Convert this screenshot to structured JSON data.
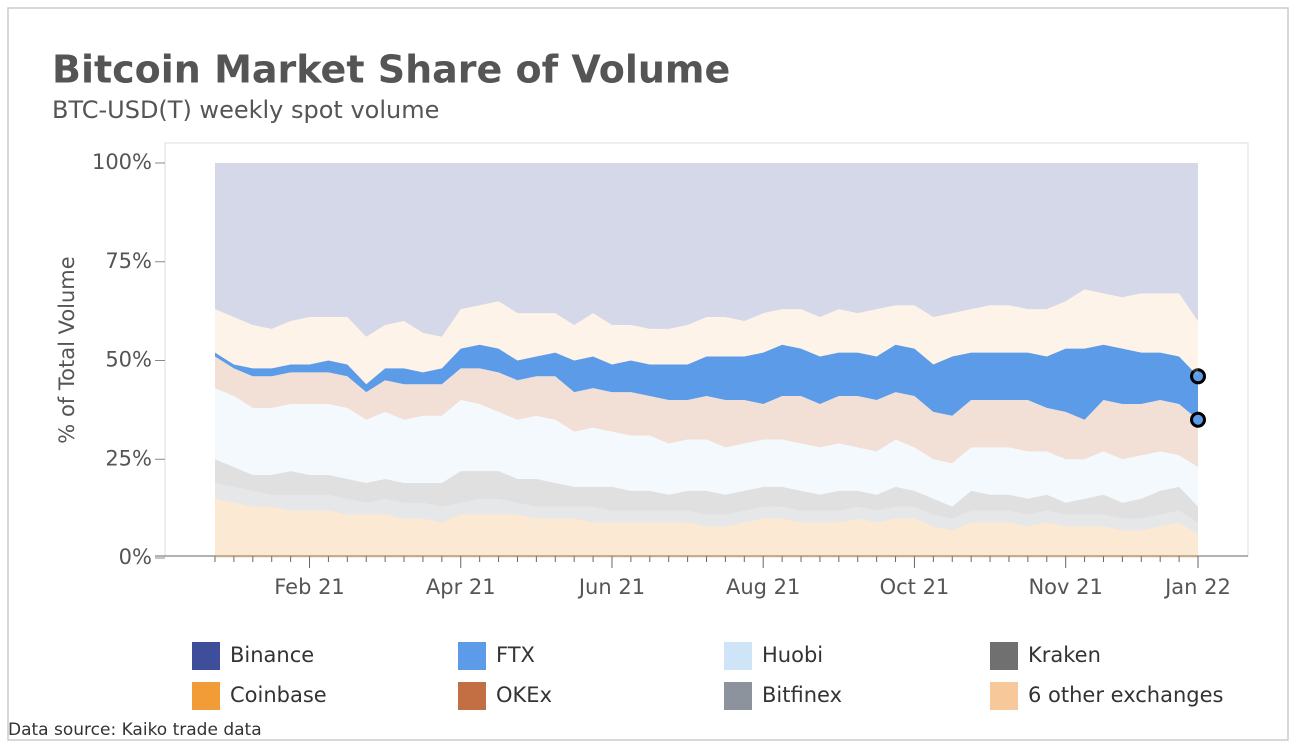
{
  "chart_data": {
    "type": "stacked_area",
    "title": "Bitcoin Market Share of Volume",
    "subtitle": "BTC-USD(T) weekly spot volume",
    "y_label": "% of Total Volume",
    "source": "Data source: Kaiko trade data",
    "highlight": "FTX",
    "categories": [
      null,
      null,
      null,
      null,
      null,
      "Feb 21",
      null,
      null,
      null,
      null,
      null,
      null,
      null,
      "Apr 21",
      null,
      null,
      null,
      null,
      null,
      null,
      null,
      "Jun 21",
      null,
      null,
      null,
      null,
      null,
      null,
      null,
      "Aug 21",
      null,
      null,
      null,
      null,
      null,
      null,
      null,
      "Oct 21",
      null,
      null,
      null,
      null,
      null,
      null,
      null,
      "Nov 21",
      null,
      null,
      null,
      null,
      null,
      null,
      "Jan 22"
    ],
    "ylim": [
      0,
      100
    ],
    "yticks": [
      {
        "value": 0,
        "label": "0%"
      },
      {
        "value": 25,
        "label": "25%"
      },
      {
        "value": 50,
        "label": "50%"
      },
      {
        "value": 75,
        "label": "75%"
      },
      {
        "value": 100,
        "label": "100%"
      }
    ],
    "series": [
      {
        "name": "Binance",
        "color": "#3f4e9a",
        "values": [
          37,
          39,
          41,
          42,
          40,
          39,
          39,
          39,
          44,
          41,
          40,
          43,
          44,
          37,
          36,
          35,
          38,
          38,
          38,
          41,
          38,
          41,
          41,
          42,
          42,
          41,
          39,
          39,
          40,
          38,
          37,
          37,
          39,
          37,
          38,
          37,
          36,
          36,
          39,
          38,
          37,
          36,
          36,
          37,
          37,
          35,
          32,
          33,
          34,
          33,
          33,
          33,
          40
        ]
      },
      {
        "name": "FTX",
        "color": "#5b9be8",
        "values": [
          1,
          1,
          2,
          2,
          2,
          2,
          3,
          3,
          2,
          3,
          4,
          3,
          4,
          5,
          6,
          6,
          5,
          5,
          6,
          8,
          8,
          7,
          8,
          8,
          9,
          9,
          10,
          11,
          11,
          13,
          13,
          12,
          12,
          11,
          11,
          11,
          12,
          12,
          12,
          15,
          12,
          12,
          12,
          12,
          13,
          16,
          18,
          14,
          14,
          13,
          12,
          12,
          11
        ]
      },
      {
        "name": "Huobi",
        "color": "#cfe5f7",
        "values": [
          18,
          18,
          17,
          17,
          17,
          18,
          18,
          18,
          16,
          17,
          16,
          17,
          17,
          18,
          17,
          15,
          15,
          16,
          16,
          14,
          15,
          14,
          14,
          14,
          13,
          13,
          13,
          12,
          12,
          12,
          12,
          12,
          12,
          12,
          11,
          11,
          12,
          11,
          10,
          11,
          11,
          12,
          12,
          12,
          11,
          11,
          10,
          11,
          11,
          11,
          10,
          8,
          10
        ]
      },
      {
        "name": "Kraken",
        "color": "#707070",
        "values": [
          6,
          5,
          4,
          5,
          6,
          5,
          5,
          5,
          5,
          5,
          5,
          5,
          6,
          8,
          7,
          7,
          6,
          7,
          6,
          5,
          5,
          6,
          5,
          5,
          4,
          5,
          6,
          5,
          5,
          5,
          5,
          5,
          4,
          5,
          4,
          4,
          5,
          4,
          4,
          3,
          5,
          4,
          4,
          4,
          4,
          3,
          4,
          5,
          4,
          5,
          6,
          6,
          4
        ]
      },
      {
        "name": "Coinbase",
        "color": "#f29c38",
        "values": [
          15,
          14,
          13,
          13,
          12,
          12,
          12,
          11,
          11,
          11,
          10,
          10,
          9,
          11,
          11,
          11,
          11,
          10,
          10,
          10,
          9,
          9,
          9,
          9,
          9,
          9,
          8,
          8,
          9,
          10,
          10,
          9,
          9,
          9,
          10,
          9,
          10,
          10,
          8,
          7,
          9,
          9,
          9,
          8,
          9,
          8,
          8,
          8,
          7,
          7,
          8,
          9,
          6
        ]
      },
      {
        "name": "OKEx",
        "color": "#c36f43",
        "values": [
          8,
          7,
          8,
          8,
          8,
          8,
          8,
          8,
          7,
          8,
          9,
          8,
          8,
          8,
          9,
          10,
          10,
          10,
          11,
          10,
          10,
          10,
          11,
          10,
          11,
          10,
          11,
          12,
          11,
          9,
          11,
          12,
          11,
          12,
          13,
          13,
          12,
          13,
          12,
          12,
          12,
          12,
          12,
          13,
          11,
          12,
          10,
          13,
          14,
          13,
          13,
          13,
          12
        ]
      },
      {
        "name": "Bitfinex",
        "color": "#8c939c",
        "values": [
          4,
          4,
          4,
          3,
          4,
          4,
          4,
          4,
          3,
          4,
          4,
          4,
          4,
          3,
          4,
          4,
          3,
          3,
          3,
          3,
          4,
          3,
          3,
          3,
          3,
          3,
          3,
          3,
          3,
          3,
          3,
          3,
          3,
          3,
          3,
          3,
          3,
          3,
          3,
          3,
          3,
          3,
          3,
          3,
          3,
          3,
          3,
          3,
          3,
          3,
          3,
          3,
          3
        ]
      },
      {
        "name": "6 other exchanges",
        "color": "#f6c89a",
        "values": [
          11,
          12,
          11,
          10,
          11,
          12,
          11,
          12,
          12,
          11,
          12,
          10,
          8,
          10,
          10,
          12,
          12,
          11,
          10,
          9,
          11,
          10,
          9,
          9,
          9,
          10,
          10,
          10,
          9,
          10,
          9,
          10,
          10,
          11,
          10,
          12,
          10,
          11,
          12,
          11,
          11,
          12,
          12,
          11,
          12,
          12,
          15,
          13,
          13,
          15,
          15,
          16,
          14
        ]
      }
    ]
  }
}
